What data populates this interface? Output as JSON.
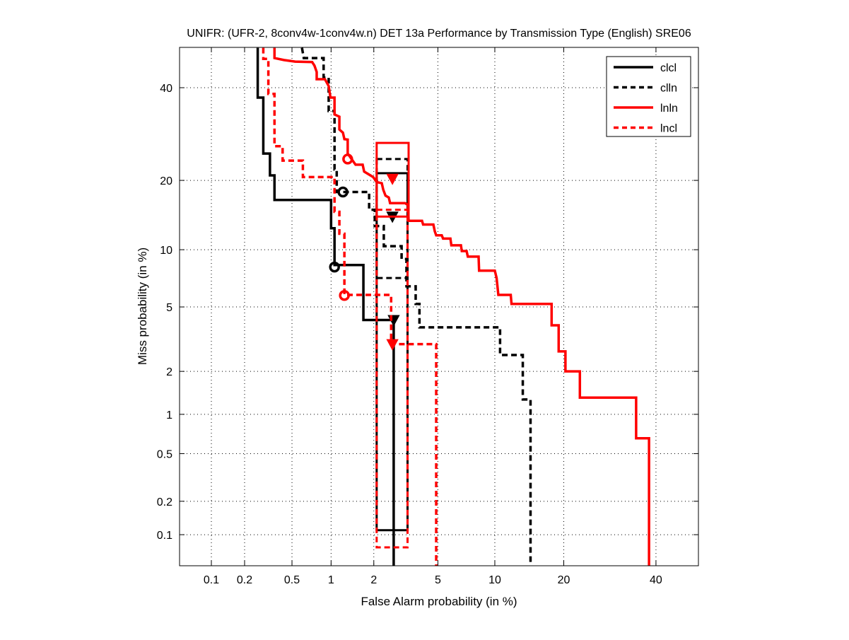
{
  "chart_data": {
    "type": "line",
    "title": "UNIFR: (UFR-2, 8conv4w-1conv4w.n) DET 13a Performance by Transmission Type (English) SRE06",
    "xlabel": "False Alarm probability (in %)",
    "ylabel": "Miss probability (in %)",
    "scale": "normal-deviate (probit)",
    "xlim": [
      0.05,
      50
    ],
    "ylim": [
      0.05,
      50
    ],
    "grid": true,
    "legend_placement": "top-right",
    "x_ticks": [
      "0.1",
      "0.2",
      "0.5",
      "1",
      "2",
      "5",
      "10",
      "20",
      "40"
    ],
    "y_ticks": [
      "0.1",
      "0.2",
      "0.5",
      "1",
      "2",
      "5",
      "10",
      "20",
      "40"
    ],
    "series": [
      {
        "name": "clcl",
        "color": "#000000",
        "dashed": false,
        "points": [
          [
            0.26,
            50
          ],
          [
            0.26,
            37.6
          ],
          [
            0.29,
            37.6
          ],
          [
            0.29,
            25.1
          ],
          [
            0.33,
            25.1
          ],
          [
            0.33,
            20.9
          ],
          [
            0.36,
            20.9
          ],
          [
            0.36,
            16.7
          ],
          [
            1.0,
            16.7
          ],
          [
            1.0,
            12.6
          ],
          [
            1.06,
            12.6
          ],
          [
            1.06,
            8.4
          ],
          [
            1.7,
            8.4
          ],
          [
            1.7,
            4.2
          ],
          [
            2.7,
            4.2
          ],
          [
            2.7,
            0.05
          ]
        ],
        "min_dcf": [
          1.06,
          8.2
        ],
        "act_dcf": [
          2.7,
          4.2
        ],
        "box": [
          [
            2.09,
            3.3
          ],
          [
            0.11,
            21.3
          ]
        ]
      },
      {
        "name": "clln",
        "color": "#000000",
        "dashed": true,
        "points": [
          [
            0.6,
            50
          ],
          [
            0.62,
            47.4
          ],
          [
            0.88,
            47.4
          ],
          [
            0.88,
            42.5
          ],
          [
            0.96,
            42.5
          ],
          [
            0.96,
            34.4
          ],
          [
            1.06,
            34.4
          ],
          [
            1.06,
            22
          ],
          [
            1.1,
            22
          ],
          [
            1.1,
            18.0
          ],
          [
            1.86,
            18.0
          ],
          [
            1.86,
            15.2
          ],
          [
            2.03,
            15.2
          ],
          [
            2.03,
            12.9
          ],
          [
            2.33,
            12.9
          ],
          [
            2.33,
            10.4
          ],
          [
            3.03,
            10.4
          ],
          [
            3.03,
            9.0
          ],
          [
            3.25,
            9.0
          ],
          [
            3.25,
            6.5
          ],
          [
            3.7,
            6.5
          ],
          [
            3.7,
            5.2
          ],
          [
            3.9,
            5.2
          ],
          [
            3.9,
            3.8
          ],
          [
            10.6,
            3.8
          ],
          [
            10.6,
            2.56
          ],
          [
            13.5,
            2.56
          ],
          [
            13.5,
            1.28
          ],
          [
            14.6,
            1.28
          ],
          [
            14.6,
            0.05
          ]
        ],
        "min_dcf": [
          1.22,
          18.0
        ],
        "act_dcf": [
          2.65,
          14.2
        ],
        "box": [
          [
            2.09,
            3.3
          ],
          [
            7.2,
            24.0
          ]
        ]
      },
      {
        "name": "lnln",
        "color": "#ff0000",
        "dashed": false,
        "points": [
          [
            0.36,
            50
          ],
          [
            0.36,
            47.4
          ],
          [
            0.43,
            46.9
          ],
          [
            0.53,
            46.5
          ],
          [
            0.72,
            46.4
          ],
          [
            0.75,
            45.5
          ],
          [
            0.78,
            43.9
          ],
          [
            0.78,
            42.1
          ],
          [
            0.9,
            42.1
          ],
          [
            0.96,
            40.4
          ],
          [
            0.99,
            37.6
          ],
          [
            1.06,
            37.6
          ],
          [
            1.06,
            33.6
          ],
          [
            1.15,
            33.1
          ],
          [
            1.15,
            30.2
          ],
          [
            1.22,
            29.5
          ],
          [
            1.25,
            28.1
          ],
          [
            1.32,
            28.0
          ],
          [
            1.32,
            25.1
          ],
          [
            1.5,
            22.9
          ],
          [
            1.68,
            22.9
          ],
          [
            1.72,
            21.6
          ],
          [
            1.98,
            20.6
          ],
          [
            2.09,
            19.7
          ],
          [
            2.26,
            19.5
          ],
          [
            2.31,
            18.4
          ],
          [
            2.39,
            17.4
          ],
          [
            2.51,
            17.1
          ],
          [
            2.56,
            16.2
          ],
          [
            3.19,
            16.2
          ],
          [
            3.32,
            15.9
          ],
          [
            3.35,
            13.6
          ],
          [
            4.04,
            13.6
          ],
          [
            4.1,
            13.1
          ],
          [
            4.71,
            13.1
          ],
          [
            4.8,
            12.2
          ],
          [
            4.89,
            11.7
          ],
          [
            5.26,
            11.7
          ],
          [
            5.35,
            11.3
          ],
          [
            5.88,
            11.3
          ],
          [
            5.95,
            10.5
          ],
          [
            6.71,
            10.5
          ],
          [
            6.78,
            9.85
          ],
          [
            7.19,
            9.85
          ],
          [
            7.3,
            9.25
          ],
          [
            8.3,
            9.25
          ],
          [
            8.35,
            7.86
          ],
          [
            10.0,
            7.86
          ],
          [
            10.2,
            7.2
          ],
          [
            10.4,
            5.84
          ],
          [
            11.9,
            5.84
          ],
          [
            12.0,
            5.2
          ],
          [
            17.9,
            5.2
          ],
          [
            17.9,
            3.91
          ],
          [
            19.1,
            3.91
          ],
          [
            19.1,
            2.7
          ],
          [
            20.3,
            2.7
          ],
          [
            20.3,
            2.0
          ],
          [
            23.0,
            2.0
          ],
          [
            23.0,
            1.32
          ],
          [
            35.2,
            1.32
          ],
          [
            35.2,
            0.66
          ],
          [
            38.3,
            0.66
          ],
          [
            38.3,
            0.05
          ]
        ],
        "min_dcf": [
          1.32,
          24.0
        ],
        "act_dcf": [
          2.65,
          20.3
        ],
        "box": [
          [
            2.09,
            3.35
          ],
          [
            14.2,
            27.3
          ]
        ]
      },
      {
        "name": "lncl",
        "color": "#ff0000",
        "dashed": true,
        "points": [
          [
            0.29,
            50
          ],
          [
            0.29,
            47.2
          ],
          [
            0.32,
            47.2
          ],
          [
            0.32,
            38.5
          ],
          [
            0.36,
            38.5
          ],
          [
            0.36,
            26.6
          ],
          [
            0.42,
            26.6
          ],
          [
            0.42,
            23.7
          ],
          [
            0.61,
            23.7
          ],
          [
            0.61,
            20.6
          ],
          [
            1.06,
            20.6
          ],
          [
            1.06,
            14.9
          ],
          [
            1.15,
            14.9
          ],
          [
            1.15,
            11.9
          ],
          [
            1.25,
            11.9
          ],
          [
            1.25,
            5.84
          ],
          [
            2.6,
            5.84
          ],
          [
            2.6,
            3.0
          ],
          [
            4.89,
            3.0
          ],
          [
            4.89,
            0.05
          ]
        ],
        "min_dcf": [
          1.25,
          5.8
        ],
        "act_dcf": [
          2.65,
          3.0
        ],
        "box": [
          [
            2.09,
            3.3
          ],
          [
            0.076,
            15.2
          ]
        ]
      }
    ]
  }
}
